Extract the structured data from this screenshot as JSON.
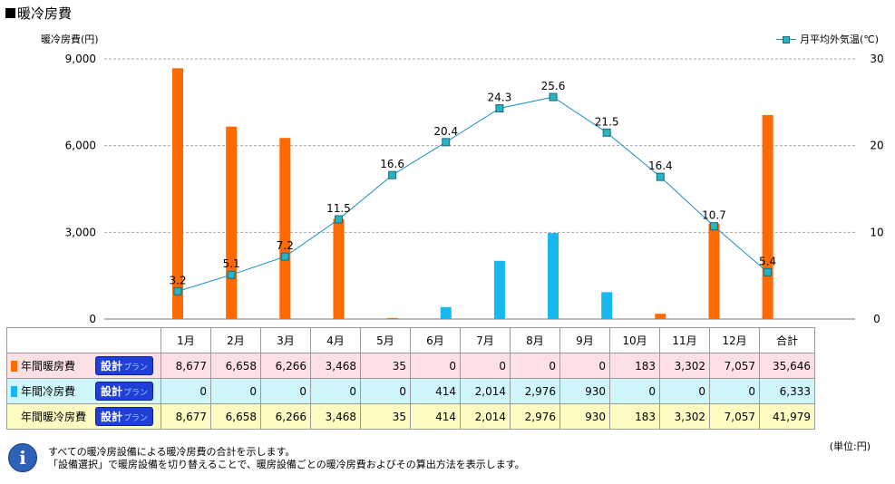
{
  "title": "暖冷房費",
  "y_left_label": "暖冷房費(円)",
  "legend_line_label": "月平均外気温(℃)",
  "chart_data": {
    "type": "bar",
    "categories": [
      "1月",
      "2月",
      "3月",
      "4月",
      "5月",
      "6月",
      "7月",
      "8月",
      "9月",
      "10月",
      "11月",
      "12月"
    ],
    "series": [
      {
        "name": "年間暖房費",
        "type": "bar",
        "axis": "left",
        "color": "#ff6a00",
        "values": [
          8677,
          6658,
          6266,
          3468,
          35,
          0,
          0,
          0,
          0,
          183,
          3302,
          7057
        ]
      },
      {
        "name": "年間冷房費",
        "type": "bar",
        "axis": "left",
        "color": "#17b8ef",
        "values": [
          0,
          0,
          0,
          0,
          0,
          414,
          2014,
          2976,
          930,
          0,
          0,
          0
        ]
      },
      {
        "name": "月平均外気温(℃)",
        "type": "line",
        "axis": "right",
        "color": "#1c8fc0",
        "values": [
          3.2,
          5.1,
          7.2,
          11.5,
          16.6,
          20.4,
          24.3,
          25.6,
          21.5,
          16.4,
          10.7,
          5.4
        ]
      }
    ],
    "y_left_ticks": [
      "0",
      "3,000",
      "6,000",
      "9,000"
    ],
    "y_left_range": [
      0,
      9000
    ],
    "y_right_ticks": [
      "0",
      "10",
      "20",
      "30"
    ],
    "y_right_range": [
      0,
      30
    ],
    "grid": true
  },
  "table": {
    "headers": [
      "1月",
      "2月",
      "3月",
      "4月",
      "5月",
      "6月",
      "7月",
      "8月",
      "9月",
      "10月",
      "11月",
      "12月",
      "合計"
    ],
    "rows": [
      {
        "label": "年間暖房費",
        "plan": "設計",
        "plan_suffix": "プラン",
        "values": [
          "8,677",
          "6,658",
          "6,266",
          "3,468",
          "35",
          "0",
          "0",
          "0",
          "0",
          "183",
          "3,302",
          "7,057",
          "35,646"
        ]
      },
      {
        "label": "年間冷房費",
        "plan": "設計",
        "plan_suffix": "プラン",
        "values": [
          "0",
          "0",
          "0",
          "0",
          "0",
          "414",
          "2,014",
          "2,976",
          "930",
          "0",
          "0",
          "0",
          "6,333"
        ]
      },
      {
        "label": "年間暖冷房費",
        "plan": "設計",
        "plan_suffix": "プラン",
        "values": [
          "8,677",
          "6,658",
          "6,266",
          "3,468",
          "35",
          "414",
          "2,014",
          "2,976",
          "930",
          "183",
          "3,302",
          "7,057",
          "41,979"
        ]
      }
    ]
  },
  "unit_note": "(単位:円)",
  "info_icon_glyph": "i",
  "notes": [
    "すべての暖冷房設備による暖冷房費の合計を示します。",
    "「設備選択」で暖房設備を切り替えることで、暖房設備ごとの暖冷房費およびその算出方法を表示します。"
  ]
}
